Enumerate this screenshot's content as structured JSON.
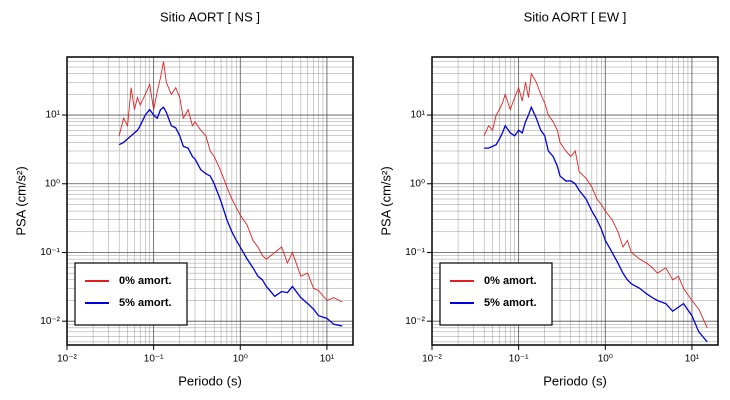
{
  "chart_data": [
    {
      "type": "line",
      "title": "Sitio AORT [ NS ]",
      "xlabel": "Periodo (s)",
      "ylabel": "PSA (cm/s²)",
      "xscale": "log",
      "yscale": "log",
      "grid": true,
      "legend": "lower left",
      "xlim": [
        0.01,
        20
      ],
      "ylim": [
        0.0045,
        70
      ],
      "xticks": [
        {
          "value": 0.01,
          "label": "10⁻²"
        },
        {
          "value": 0.1,
          "label": "10⁻¹"
        },
        {
          "value": 1,
          "label": "10⁰"
        },
        {
          "value": 10,
          "label": "10¹"
        }
      ],
      "yticks": [
        {
          "value": 0.01,
          "label": "10⁻²"
        },
        {
          "value": 0.1,
          "label": "10⁻¹"
        },
        {
          "value": 1,
          "label": "10⁰"
        },
        {
          "value": 10,
          "label": "10¹"
        }
      ],
      "xminorticks": [
        0.02,
        0.03,
        0.04,
        0.05,
        0.06,
        0.07,
        0.08,
        0.09,
        0.2,
        0.3,
        0.4,
        0.5,
        0.6,
        0.7,
        0.8,
        0.9,
        2,
        3,
        4,
        5,
        6,
        7,
        8,
        9
      ],
      "yminorticks": [
        0.005,
        0.006,
        0.007,
        0.008,
        0.009,
        0.02,
        0.03,
        0.04,
        0.05,
        0.06,
        0.07,
        0.08,
        0.09,
        0.2,
        0.3,
        0.4,
        0.5,
        0.6,
        0.7,
        0.8,
        0.9,
        2,
        3,
        4,
        5,
        6,
        7,
        8,
        9,
        20,
        30,
        40,
        50,
        60,
        70
      ],
      "x": [
        0.04,
        0.045,
        0.05,
        0.055,
        0.06,
        0.065,
        0.07,
        0.08,
        0.09,
        0.1,
        0.11,
        0.12,
        0.13,
        0.14,
        0.16,
        0.18,
        0.2,
        0.22,
        0.25,
        0.28,
        0.3,
        0.35,
        0.4,
        0.45,
        0.5,
        0.6,
        0.7,
        0.8,
        0.9,
        1.0,
        1.2,
        1.4,
        1.6,
        1.8,
        2,
        2.5,
        3,
        3.5,
        4,
        5,
        6,
        7,
        8,
        10,
        12,
        15
      ],
      "series": [
        {
          "name": "0% amort.",
          "color": "#e02020",
          "values": [
            5,
            9,
            7,
            25,
            12,
            18,
            14,
            20,
            28,
            12,
            22,
            35,
            60,
            30,
            20,
            25,
            18,
            9,
            12,
            7,
            8,
            6,
            5,
            3,
            2.5,
            1.5,
            0.9,
            0.6,
            0.45,
            0.35,
            0.25,
            0.15,
            0.12,
            0.09,
            0.08,
            0.1,
            0.12,
            0.07,
            0.1,
            0.045,
            0.05,
            0.03,
            0.028,
            0.02,
            0.022,
            0.019
          ]
        },
        {
          "name": "5% amort.",
          "color": "#0000dd",
          "values": [
            3.7,
            4,
            4.5,
            5,
            5.5,
            6,
            7,
            10,
            12,
            10,
            9,
            12,
            13,
            11,
            7,
            6.5,
            5,
            3.5,
            3.3,
            2.5,
            2.3,
            1.6,
            1.4,
            1.3,
            1.0,
            0.55,
            0.3,
            0.2,
            0.15,
            0.12,
            0.08,
            0.06,
            0.045,
            0.04,
            0.032,
            0.023,
            0.027,
            0.026,
            0.032,
            0.022,
            0.018,
            0.015,
            0.012,
            0.011,
            0.009,
            0.0085
          ]
        }
      ]
    },
    {
      "type": "line",
      "title": "Sitio AORT [ EW ]",
      "xlabel": "Periodo (s)",
      "ylabel": "PSA (cm/s²)",
      "xscale": "log",
      "yscale": "log",
      "grid": true,
      "legend": "lower left",
      "xlim": [
        0.01,
        20
      ],
      "ylim": [
        0.0045,
        70
      ],
      "xticks": [
        {
          "value": 0.01,
          "label": "10⁻²"
        },
        {
          "value": 0.1,
          "label": "10⁻¹"
        },
        {
          "value": 1,
          "label": "10⁰"
        },
        {
          "value": 10,
          "label": "10¹"
        }
      ],
      "yticks": [
        {
          "value": 0.01,
          "label": "10⁻²"
        },
        {
          "value": 0.1,
          "label": "10⁻¹"
        },
        {
          "value": 1,
          "label": "10⁰"
        },
        {
          "value": 10,
          "label": "10¹"
        }
      ],
      "xminorticks": [
        0.02,
        0.03,
        0.04,
        0.05,
        0.06,
        0.07,
        0.08,
        0.09,
        0.2,
        0.3,
        0.4,
        0.5,
        0.6,
        0.7,
        0.8,
        0.9,
        2,
        3,
        4,
        5,
        6,
        7,
        8,
        9
      ],
      "yminorticks": [
        0.005,
        0.006,
        0.007,
        0.008,
        0.009,
        0.02,
        0.03,
        0.04,
        0.05,
        0.06,
        0.07,
        0.08,
        0.09,
        0.2,
        0.3,
        0.4,
        0.5,
        0.6,
        0.7,
        0.8,
        0.9,
        2,
        3,
        4,
        5,
        6,
        7,
        8,
        9,
        20,
        30,
        40,
        50,
        60,
        70
      ],
      "x": [
        0.04,
        0.045,
        0.05,
        0.055,
        0.06,
        0.065,
        0.07,
        0.08,
        0.09,
        0.1,
        0.11,
        0.12,
        0.13,
        0.14,
        0.16,
        0.18,
        0.2,
        0.22,
        0.25,
        0.28,
        0.3,
        0.35,
        0.4,
        0.45,
        0.5,
        0.6,
        0.7,
        0.8,
        0.9,
        1.0,
        1.2,
        1.4,
        1.6,
        1.8,
        2,
        2.5,
        3,
        3.5,
        4,
        5,
        6,
        7,
        8,
        10,
        12,
        15
      ],
      "series": [
        {
          "name": "0% amort.",
          "color": "#e02020",
          "values": [
            5,
            7,
            6,
            10,
            12,
            15,
            20,
            12,
            18,
            25,
            16,
            30,
            18,
            40,
            30,
            20,
            15,
            10,
            8,
            6,
            4,
            3,
            2.5,
            3,
            1.5,
            1.2,
            0.9,
            0.6,
            0.5,
            0.4,
            0.3,
            0.2,
            0.12,
            0.15,
            0.1,
            0.08,
            0.07,
            0.06,
            0.05,
            0.06,
            0.04,
            0.045,
            0.03,
            0.02,
            0.015,
            0.008
          ]
        },
        {
          "name": "5% amort.",
          "color": "#0000dd",
          "values": [
            3.3,
            3.3,
            3.5,
            3.7,
            4.5,
            5.5,
            7,
            5.5,
            5,
            6,
            5.5,
            8,
            10,
            13,
            9,
            6,
            5,
            3,
            2.5,
            1.8,
            1.3,
            1.1,
            1.1,
            1.0,
            0.8,
            0.6,
            0.4,
            0.3,
            0.22,
            0.15,
            0.1,
            0.07,
            0.05,
            0.04,
            0.035,
            0.03,
            0.025,
            0.022,
            0.02,
            0.018,
            0.014,
            0.016,
            0.018,
            0.012,
            0.007,
            0.005
          ]
        }
      ]
    }
  ]
}
